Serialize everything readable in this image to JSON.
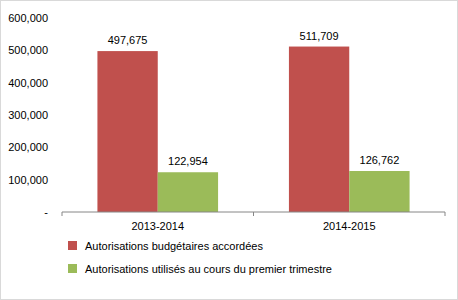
{
  "chart_data": {
    "type": "bar",
    "categories": [
      "2013-2014",
      "2014-2015"
    ],
    "series": [
      {
        "name": "Autorisations budgétaires accordées",
        "color": "#c0504d",
        "values": [
          497675,
          511709
        ],
        "value_labels": [
          "497,675",
          "511,709"
        ]
      },
      {
        "name": "Autorisations utilisés au cours du premier trimestre",
        "color": "#9bbb59",
        "values": [
          122954,
          126762
        ],
        "value_labels": [
          "122,954",
          "126,762"
        ]
      }
    ],
    "ylim": [
      0,
      600000
    ],
    "yticks": [
      {
        "value": 0,
        "label": "-"
      },
      {
        "value": 100000,
        "label": "100,000"
      },
      {
        "value": 200000,
        "label": "200,000"
      },
      {
        "value": 300000,
        "label": "300,000"
      },
      {
        "value": 400000,
        "label": "400,000"
      },
      {
        "value": 500000,
        "label": "500,000"
      },
      {
        "value": 600000,
        "label": "600,000"
      }
    ],
    "grid": false,
    "data_labels": true,
    "legend": "bottom"
  }
}
